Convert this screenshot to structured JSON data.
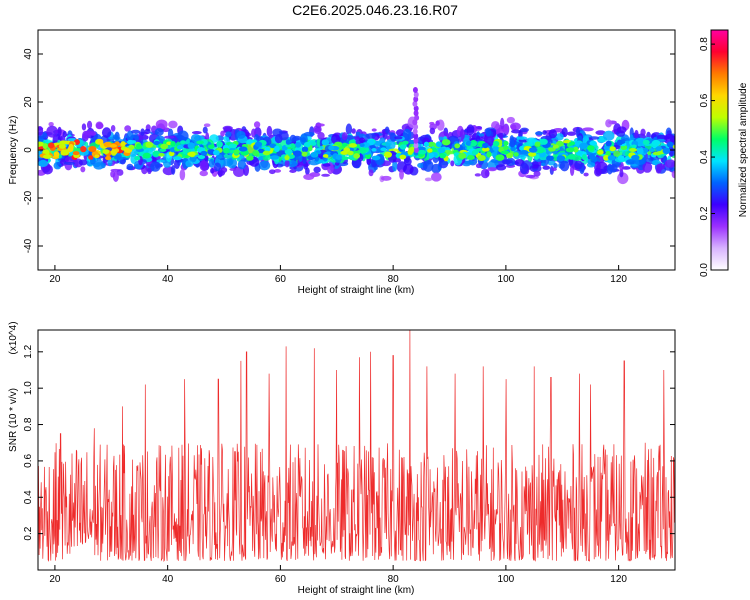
{
  "title": "C2E6.2025.046.23.16.R07",
  "colors": {
    "signal": "#ee2b2b",
    "frame": "#000000",
    "background": "#ffffff"
  },
  "chart_data": [
    {
      "type": "heatmap",
      "xlabel": "Height of straight line (km)",
      "ylabel": "Frequency (Hz)",
      "xlim": [
        17,
        130
      ],
      "ylim": [
        -50,
        50
      ],
      "x_ticks": [
        "20",
        "40",
        "60",
        "80",
        "100",
        "120"
      ],
      "y_ticks": [
        "-40",
        "-20",
        "0",
        "20",
        "40"
      ],
      "colorbar": {
        "label": "Normalized spectral amplitude",
        "range": [
          0.0,
          0.85
        ],
        "ticks": [
          "0.0",
          "0.2",
          "0.4",
          "0.6",
          "0.8"
        ],
        "colormap": [
          "#ffffff",
          "#d8b3ff",
          "#9b30ff",
          "#3c00ff",
          "#0064ff",
          "#00e5ff",
          "#00ff66",
          "#bfff00",
          "#ffd700",
          "#ff7a00",
          "#ff0030",
          "#ff00a0"
        ]
      },
      "band_center_hz": 0,
      "band_halfwidth_hz": [
        -10,
        10
      ],
      "features": [
        {
          "x": 84,
          "y_max": 25,
          "note": "vertical spike near 84 km"
        }
      ]
    },
    {
      "type": "line",
      "xlabel": "Height of straight line (km)",
      "ylabel": "SNR (10 * v/v)",
      "y_multiplier": "(x10^4)",
      "xlim": [
        17,
        130
      ],
      "ylim": [
        0,
        1.32
      ],
      "x_ticks": [
        "20",
        "40",
        "60",
        "80",
        "100",
        "120"
      ],
      "y_ticks": [
        "0.2",
        "0.4",
        "0.6",
        "0.8",
        "1.0",
        "1.2"
      ],
      "series": [
        {
          "color": "#ee2b2b",
          "samples": 1200,
          "typical_range": [
            0.05,
            0.7
          ],
          "peaks": [
            {
              "x": 21,
              "y": 0.75
            },
            {
              "x": 27,
              "y": 0.78
            },
            {
              "x": 32,
              "y": 0.9
            },
            {
              "x": 36,
              "y": 1.02
            },
            {
              "x": 43,
              "y": 1.05
            },
            {
              "x": 49,
              "y": 1.05
            },
            {
              "x": 53,
              "y": 1.15
            },
            {
              "x": 54,
              "y": 1.2
            },
            {
              "x": 58,
              "y": 1.08
            },
            {
              "x": 61,
              "y": 1.23
            },
            {
              "x": 66,
              "y": 1.22
            },
            {
              "x": 70,
              "y": 1.1
            },
            {
              "x": 74,
              "y": 1.17
            },
            {
              "x": 76,
              "y": 1.2
            },
            {
              "x": 80,
              "y": 1.18
            },
            {
              "x": 83,
              "y": 1.32
            },
            {
              "x": 86,
              "y": 1.12
            },
            {
              "x": 91,
              "y": 1.08
            },
            {
              "x": 96,
              "y": 1.12
            },
            {
              "x": 100,
              "y": 1.05
            },
            {
              "x": 105,
              "y": 1.12
            },
            {
              "x": 108,
              "y": 1.06
            },
            {
              "x": 113,
              "y": 1.08
            },
            {
              "x": 115,
              "y": 1.02
            },
            {
              "x": 121,
              "y": 1.15
            },
            {
              "x": 128,
              "y": 1.1
            }
          ]
        }
      ]
    }
  ]
}
